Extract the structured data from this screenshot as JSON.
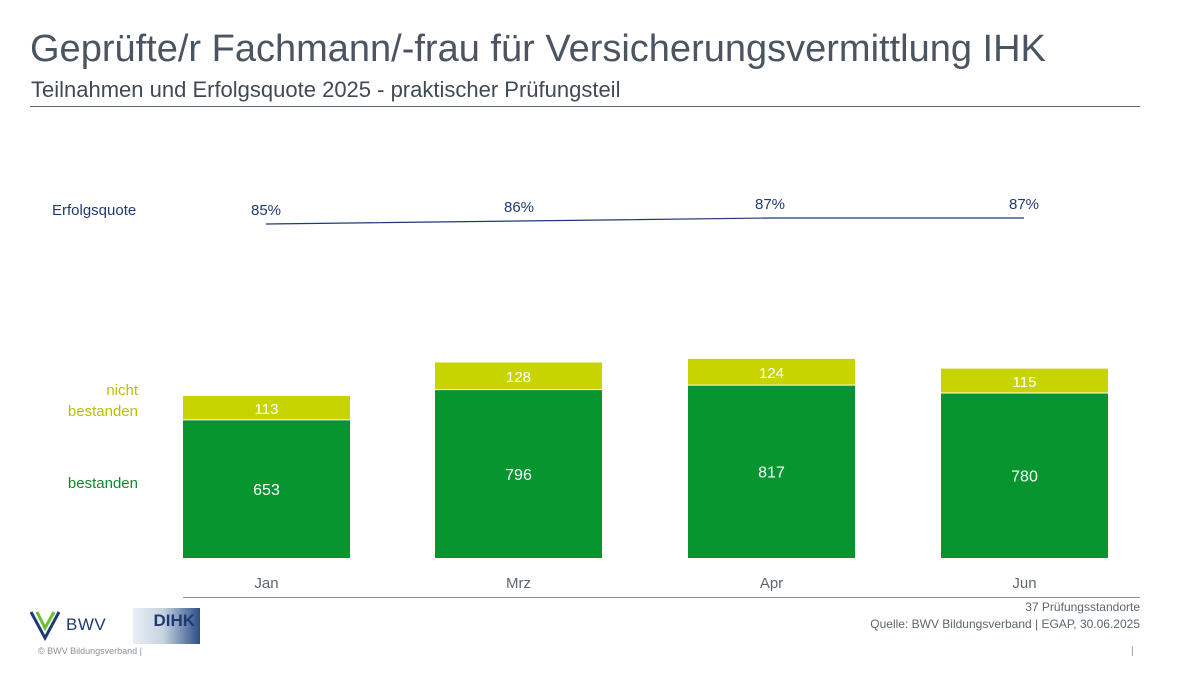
{
  "header": {
    "title": "Geprüfte/r Fachmann/-frau für Versicherungsvermittlung IHK",
    "subtitle": "Teilnahmen und Erfolgsquote 2025 - praktischer Prüfungsteil"
  },
  "chart_data": {
    "type": "bar",
    "stacked": true,
    "categories": [
      "Jan",
      "Mrz",
      "Apr",
      "Jun"
    ],
    "series": [
      {
        "name": "bestanden",
        "values": [
          653,
          796,
          817,
          780
        ],
        "color": "#07952f"
      },
      {
        "name": "nicht bestanden",
        "values": [
          113,
          128,
          124,
          115
        ],
        "color": "#c8d400"
      }
    ],
    "line": {
      "name": "Erfolgsquote",
      "values": [
        85,
        86,
        87,
        87
      ],
      "value_labels": [
        "85%",
        "86%",
        "87%",
        "87%"
      ],
      "color": "#1f3a73"
    },
    "grid": false
  },
  "legend": {
    "quote": "Erfolgsquote",
    "nicht_bestanden": "nicht bestanden",
    "bestanden": "bestanden"
  },
  "footer": {
    "standorte": "37 Prüfungsstandorte",
    "source": "Quelle: BWV Bildungsverband | EGAP, 30.06.2025",
    "copyright": "© BWV Bildungsverband |",
    "page_separator": "|"
  },
  "logos": {
    "bwv": "BWV",
    "dihk": "DIHK"
  },
  "colors": {
    "text": "#4a5561",
    "accent_blue": "#1f3a73",
    "green": "#07952f",
    "yellow": "#c8d400"
  }
}
